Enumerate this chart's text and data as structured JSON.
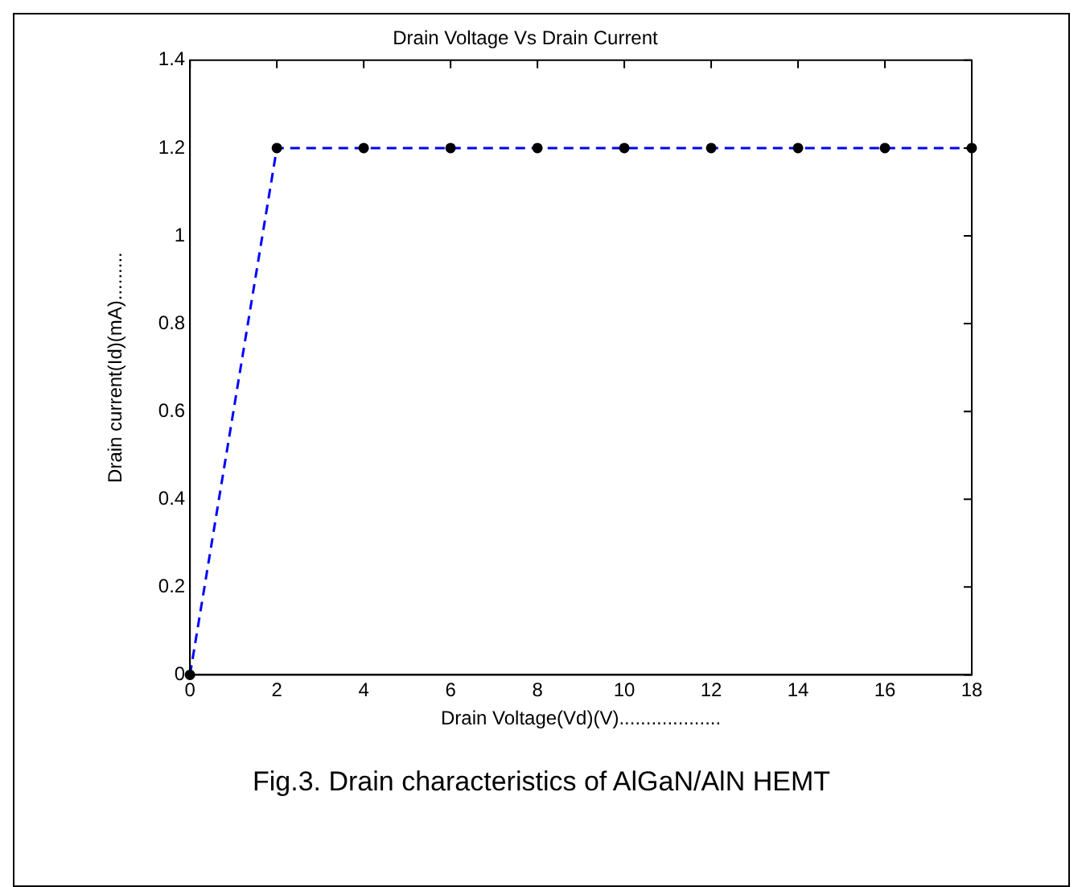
{
  "chart_data": {
    "type": "line",
    "title": "Drain Voltage Vs Drain Current",
    "xlabel": "Drain Voltage(Vd)(V)...................",
    "ylabel": "Drain current(Id)(mA).........",
    "x": [
      0,
      2,
      4,
      6,
      8,
      10,
      12,
      14,
      16,
      18
    ],
    "series": [
      {
        "color": "#0000ff",
        "values": [
          0,
          1.2,
          1.2,
          1.2,
          1.2,
          1.2,
          1.2,
          1.2,
          1.2,
          1.2
        ]
      }
    ],
    "xlim": [
      0,
      18
    ],
    "ylim": [
      0,
      1.4
    ],
    "xticks": [
      0,
      2,
      4,
      6,
      8,
      10,
      12,
      14,
      16,
      18
    ],
    "yticks": [
      0,
      0.2,
      0.4,
      0.6,
      0.8,
      1,
      1.2,
      1.4
    ],
    "grid": false,
    "legend": false,
    "marker": "circle",
    "line_style": "dashed",
    "annotations": [
      "Fig.3. Drain characteristics of AlGaN/AlN HEMT"
    ]
  }
}
